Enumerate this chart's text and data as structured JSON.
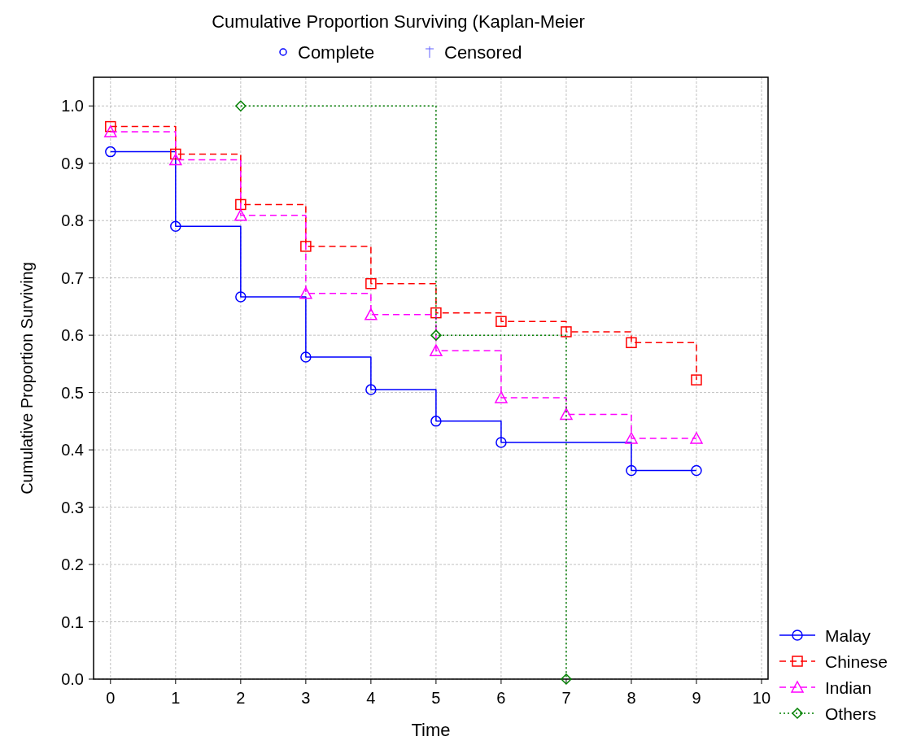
{
  "chart_data": {
    "type": "step",
    "title": "Cumulative Proportion Surviving (Kaplan-Meier",
    "xlabel": "Time",
    "ylabel": "Cumulative Proportion Surviving",
    "annotations": [
      "Complete",
      "Censored"
    ],
    "xlim": [
      -0.26,
      10.1
    ],
    "ylim": [
      0,
      1.05
    ],
    "xticks": [
      0,
      1,
      2,
      3,
      4,
      5,
      6,
      7,
      8,
      9,
      10
    ],
    "yticks": [
      {
        "value": 0,
        "label": "0.0"
      },
      0.1,
      0.2,
      0.3,
      0.4,
      0.5,
      0.6,
      0.7,
      0.8,
      0.9,
      {
        "value": 1,
        "label": "1.0"
      }
    ],
    "grid": true,
    "legend": "bottom right",
    "series": [
      {
        "name": "Malay",
        "color": "#0000ff",
        "marker": "circle",
        "line_style": "solid",
        "x": [
          0,
          1,
          2,
          3,
          4,
          5,
          6,
          8,
          9
        ],
        "values": [
          0.92,
          0.79,
          0.667,
          0.562,
          0.505,
          0.45,
          0.413,
          0.364,
          0.364
        ]
      },
      {
        "name": "Chinese",
        "color": "#ff0000",
        "marker": "square",
        "line_style": "dashed",
        "x": [
          0,
          1,
          2,
          3,
          4,
          5,
          6,
          7,
          8,
          9
        ],
        "values": [
          0.964,
          0.916,
          0.828,
          0.755,
          0.69,
          0.639,
          0.624,
          0.606,
          0.587,
          0.522
        ]
      },
      {
        "name": "Indian",
        "color": "#ff00ff",
        "marker": "triangle",
        "line_style": "dashed",
        "x": [
          0,
          1,
          2,
          3,
          4,
          5,
          6,
          7,
          8,
          9
        ],
        "values": [
          0.955,
          0.906,
          0.809,
          0.673,
          0.636,
          0.573,
          0.491,
          0.462,
          0.42,
          0.42
        ]
      },
      {
        "name": "Others",
        "color": "#008000",
        "marker": "diamond",
        "line_style": "dotted",
        "x": [
          2,
          5,
          7
        ],
        "values": [
          1.0,
          0.6,
          0.0
        ]
      }
    ]
  }
}
